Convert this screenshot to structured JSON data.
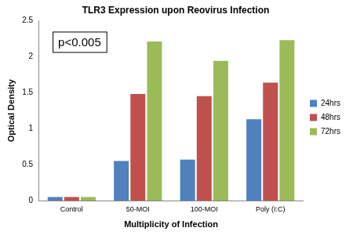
{
  "chart_data": {
    "type": "bar",
    "title": "TLR3 Expression upon Reovirus Infection",
    "x_label": "Multiplicity of Infection",
    "y_label": "Optical Density",
    "annotation": "p<0.005",
    "categories": [
      "Control",
      "50-MOI",
      "100-MOI",
      "Poly (I:C)"
    ],
    "series": [
      {
        "name": "24hrs",
        "color": "#4f81bd",
        "values": [
          0.05,
          0.55,
          0.57,
          1.13
        ]
      },
      {
        "name": "48hrs",
        "color": "#c0504d",
        "values": [
          0.05,
          1.48,
          1.45,
          1.64
        ]
      },
      {
        "name": "72hrs",
        "color": "#9bbb59",
        "values": [
          0.05,
          2.21,
          1.94,
          2.23
        ]
      }
    ],
    "ylim": [
      0,
      2.5
    ],
    "yticks": [
      0,
      0.5,
      1,
      1.5,
      2,
      2.5
    ],
    "grid": false,
    "legend": "right"
  }
}
